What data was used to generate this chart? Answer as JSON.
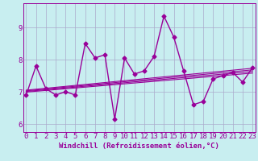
{
  "xlabel": "Windchill (Refroidissement éolien,°C)",
  "bg_color": "#c8eef0",
  "line_color": "#990099",
  "grid_color": "#aaaacc",
  "x_data": [
    0,
    1,
    2,
    3,
    4,
    5,
    6,
    7,
    8,
    9,
    10,
    11,
    12,
    13,
    14,
    15,
    16,
    17,
    18,
    19,
    20,
    21,
    22,
    23
  ],
  "y_main": [
    6.9,
    7.8,
    7.1,
    6.9,
    7.0,
    6.9,
    8.5,
    8.05,
    8.15,
    6.15,
    8.05,
    7.55,
    7.65,
    8.1,
    9.35,
    8.7,
    7.65,
    6.6,
    6.7,
    7.4,
    7.5,
    7.6,
    7.3,
    7.75
  ],
  "trend_lines": [
    [
      0,
      6.99,
      23,
      7.58
    ],
    [
      0,
      7.01,
      23,
      7.63
    ],
    [
      0,
      7.03,
      23,
      7.68
    ],
    [
      0,
      7.05,
      23,
      7.73
    ]
  ],
  "xlim": [
    -0.3,
    23.3
  ],
  "ylim": [
    5.75,
    9.75
  ],
  "yticks": [
    6,
    7,
    8,
    9
  ],
  "xticks": [
    0,
    1,
    2,
    3,
    4,
    5,
    6,
    7,
    8,
    9,
    10,
    11,
    12,
    13,
    14,
    15,
    16,
    17,
    18,
    19,
    20,
    21,
    22,
    23
  ],
  "xlabel_fontsize": 6.5,
  "tick_fontsize": 6.5,
  "marker": "D",
  "markersize": 2.5,
  "linewidth": 1.0,
  "trend_linewidth": 0.8
}
